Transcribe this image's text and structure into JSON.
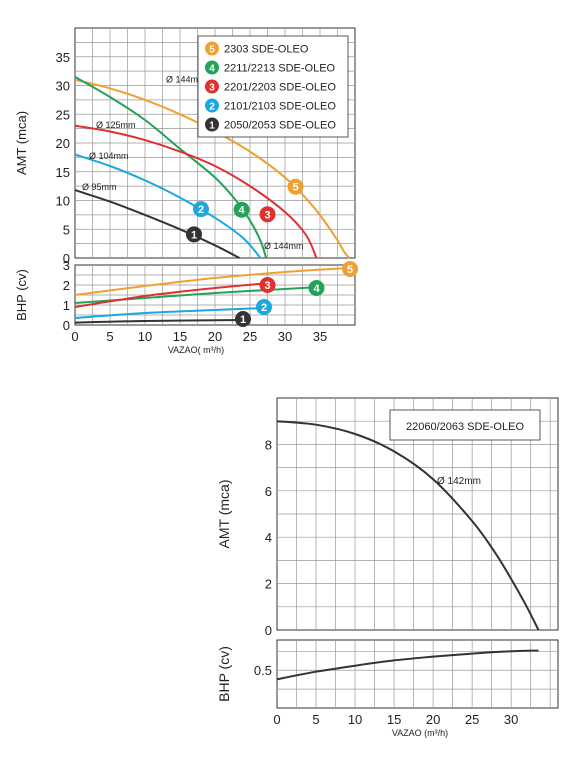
{
  "chart_data": [
    {
      "type": "line",
      "ylabel": "AMT (mca)",
      "ylabel_bottom": "BHP (cv)",
      "xlabel": "VAZAO( m³/h)",
      "xlim": [
        0,
        40
      ],
      "ylim": [
        0,
        40
      ],
      "ylim_bottom": [
        0,
        3
      ],
      "xticks": [
        "0",
        "5",
        "10",
        "15",
        "20",
        "25",
        "30",
        "35"
      ],
      "yticks": [
        "0",
        "5",
        "10",
        "15",
        "20",
        "25",
        "30",
        "35"
      ],
      "yticks_bottom": [
        "0",
        "1",
        "2",
        "3"
      ],
      "grid": true,
      "legend_position": "top-right",
      "series": [
        {
          "name": "2303 SDE-OLEO",
          "marker": "5",
          "color": "#f0a030",
          "curve_label": "Ø 144mm",
          "x": [
            0,
            5,
            10,
            15,
            20,
            25,
            30,
            34,
            37,
            38.5,
            39.2
          ],
          "y": [
            31,
            29.5,
            27.5,
            25,
            22,
            18.5,
            14,
            9,
            4,
            1,
            0
          ],
          "bhp_x": [
            0,
            10,
            20,
            30,
            39
          ],
          "bhp_y": [
            1.5,
            1.95,
            2.35,
            2.65,
            2.85
          ]
        },
        {
          "name": "2211/2213 SDE-OLEO",
          "marker": "4",
          "color": "#23a25a",
          "curve_label": "Ø 144mm",
          "x": [
            0,
            5,
            10,
            15,
            20,
            23,
            25,
            26.5,
            27.3
          ],
          "y": [
            31.5,
            28,
            24,
            19,
            14,
            10,
            6.5,
            3,
            0
          ],
          "bhp_x": [
            0,
            10,
            20,
            30,
            35
          ],
          "bhp_y": [
            1.1,
            1.35,
            1.6,
            1.8,
            1.9
          ]
        },
        {
          "name": "2201/2203 SDE-OLEO",
          "marker": "3",
          "color": "#e03030",
          "curve_label": "Ø 125mm",
          "x": [
            0,
            5,
            10,
            15,
            20,
            25,
            30,
            33,
            34.5
          ],
          "y": [
            23,
            22,
            20.5,
            18.5,
            16,
            12.5,
            8,
            4,
            0
          ],
          "bhp_x": [
            0,
            10,
            20,
            28
          ],
          "bhp_y": [
            0.9,
            1.45,
            1.85,
            2.1
          ]
        },
        {
          "name": "2101/2103 SDE-OLEO",
          "marker": "2",
          "color": "#1aa8e0",
          "curve_label": "Ø 104mm",
          "x": [
            0,
            5,
            10,
            15,
            20,
            24,
            26.5
          ],
          "y": [
            18,
            16,
            13.5,
            10.5,
            7,
            3.5,
            0
          ],
          "bhp_x": [
            0,
            10,
            20,
            27
          ],
          "bhp_y": [
            0.35,
            0.6,
            0.75,
            0.85
          ]
        },
        {
          "name": "2050/2053 SDE-OLEO",
          "marker": "1",
          "color": "#333333",
          "curve_label": "Ø 95mm",
          "x": [
            0,
            5,
            10,
            15,
            20,
            23.5
          ],
          "y": [
            11.8,
            9.8,
            7.5,
            5,
            2.2,
            0
          ],
          "bhp_x": [
            0,
            10,
            24
          ],
          "bhp_y": [
            0.12,
            0.2,
            0.25
          ]
        }
      ]
    },
    {
      "type": "line",
      "ylabel": "AMT (mca)",
      "ylabel_bottom": "BHP (cv)",
      "xlabel": "VAZAO (m³/h)",
      "xlim": [
        0,
        36
      ],
      "ylim": [
        0,
        10
      ],
      "ylim_bottom": [
        0,
        0.9
      ],
      "xticks": [
        "0",
        "5",
        "10",
        "15",
        "20",
        "25",
        "30"
      ],
      "yticks": [
        "0",
        "2",
        "4",
        "6",
        "8"
      ],
      "yticks_bottom": [
        "0.5"
      ],
      "grid": true,
      "legend_position": "top-right",
      "series": [
        {
          "name": "22060/2063 SDE-OLEO",
          "color": "#333333",
          "curve_label": "Ø 142mm",
          "x": [
            0,
            5,
            10,
            15,
            20,
            25,
            28,
            30,
            32,
            33.5
          ],
          "y": [
            9,
            8.85,
            8.45,
            7.7,
            6.5,
            4.7,
            3.3,
            2.2,
            1.0,
            0
          ],
          "bhp_x": [
            0,
            5,
            10,
            15,
            20,
            25,
            30,
            33.5
          ],
          "bhp_y": [
            0.38,
            0.48,
            0.56,
            0.63,
            0.68,
            0.72,
            0.75,
            0.76
          ]
        }
      ]
    }
  ]
}
